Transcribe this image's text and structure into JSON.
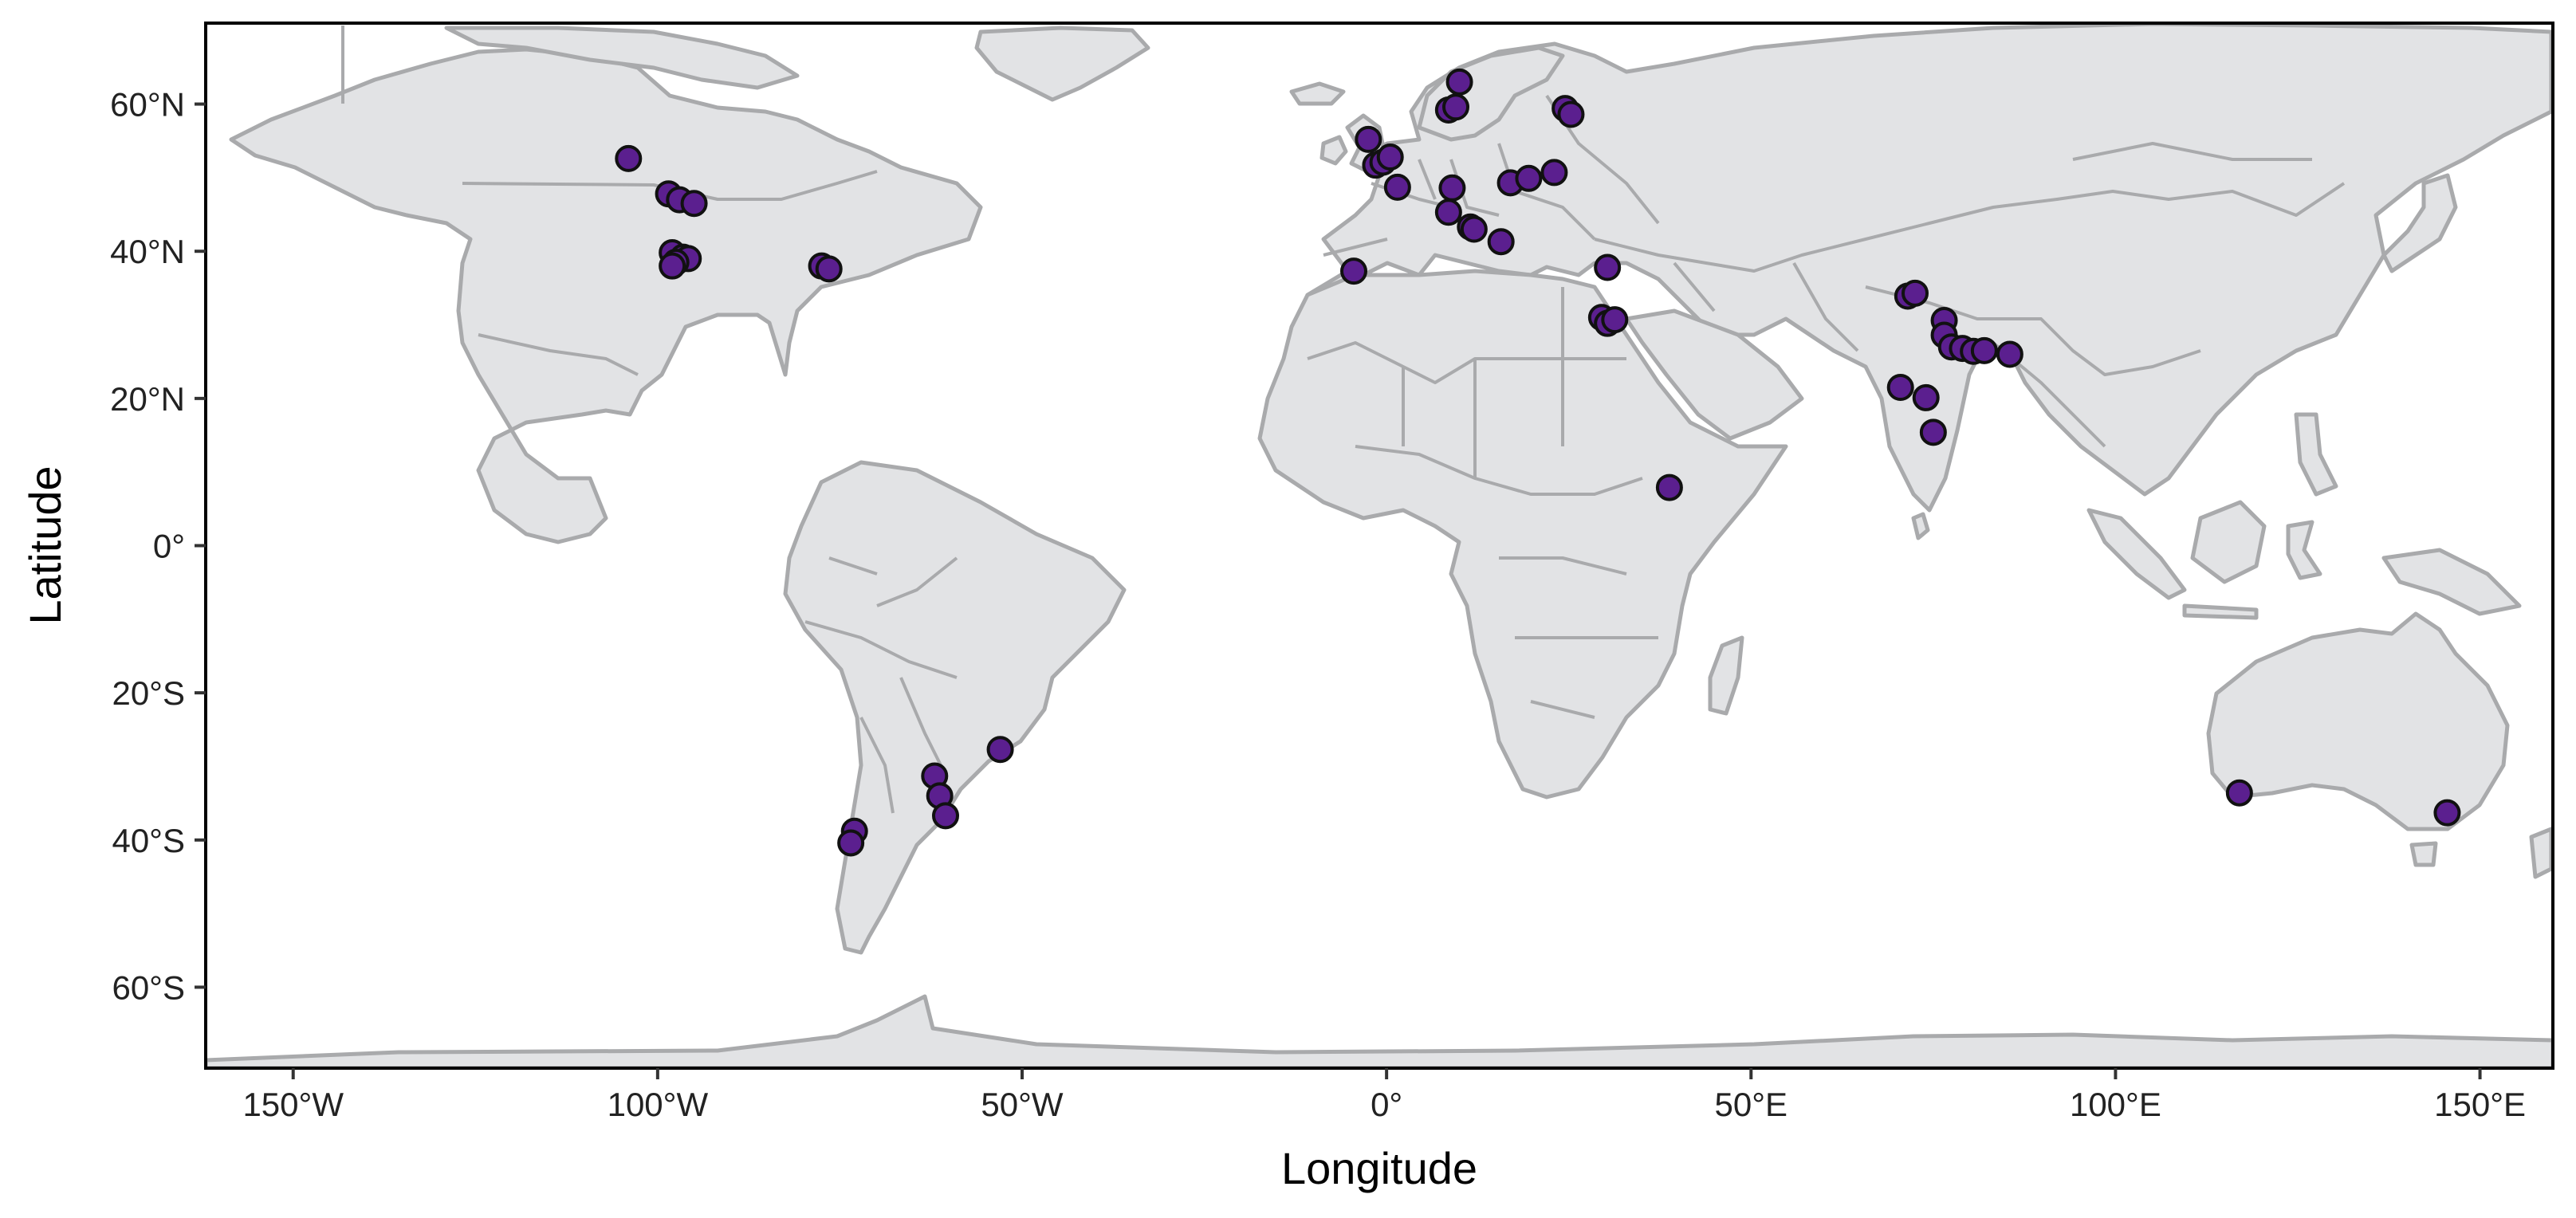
{
  "chart_data": {
    "type": "scatter",
    "basemap": "world",
    "xlabel": "Longitude",
    "ylabel": "Latitude",
    "xlim": [
      -162,
      160
    ],
    "ylim": [
      -71,
      71
    ],
    "x_ticks": [
      {
        "value": -150,
        "label": "150°W"
      },
      {
        "value": -100,
        "label": "100°W"
      },
      {
        "value": -50,
        "label": "50°W"
      },
      {
        "value": 0,
        "label": "0°"
      },
      {
        "value": 50,
        "label": "50°E"
      },
      {
        "value": 100,
        "label": "100°E"
      },
      {
        "value": 150,
        "label": "150°E"
      }
    ],
    "y_ticks": [
      {
        "value": 60,
        "label": "60°N"
      },
      {
        "value": 40,
        "label": "40°N"
      },
      {
        "value": 20,
        "label": "20°N"
      },
      {
        "value": 0,
        "label": "0°"
      },
      {
        "value": -20,
        "label": "20°S"
      },
      {
        "value": -40,
        "label": "40°S"
      },
      {
        "value": -60,
        "label": "60°S"
      }
    ],
    "grid": false,
    "colors": {
      "point_fill": "#5b1f8f",
      "point_edge": "#111111",
      "land": "#e2e3e5",
      "land_edge": "#a9aaac"
    },
    "points": [
      {
        "lon": -104,
        "lat": 52.6
      },
      {
        "lon": -98.5,
        "lat": 47.8
      },
      {
        "lon": -97,
        "lat": 47
      },
      {
        "lon": -95,
        "lat": 46.5
      },
      {
        "lon": -98,
        "lat": 39.8
      },
      {
        "lon": -96.5,
        "lat": 39.2
      },
      {
        "lon": -95.8,
        "lat": 39
      },
      {
        "lon": -97.5,
        "lat": 38.5
      },
      {
        "lon": -98,
        "lat": 38
      },
      {
        "lon": -77.5,
        "lat": 38
      },
      {
        "lon": -76.5,
        "lat": 37.6
      },
      {
        "lon": -62,
        "lat": -31.3
      },
      {
        "lon": -61.3,
        "lat": -34
      },
      {
        "lon": -60.5,
        "lat": -36.7
      },
      {
        "lon": -53,
        "lat": -27.7
      },
      {
        "lon": -73,
        "lat": -38.8
      },
      {
        "lon": -73.5,
        "lat": -40.4
      },
      {
        "lon": -2.5,
        "lat": 55.2
      },
      {
        "lon": -1.5,
        "lat": 51.7
      },
      {
        "lon": -0.5,
        "lat": 52.1
      },
      {
        "lon": 0.5,
        "lat": 52.8
      },
      {
        "lon": 1.5,
        "lat": 48.7
      },
      {
        "lon": 8.5,
        "lat": 59.2
      },
      {
        "lon": 9.5,
        "lat": 59.6
      },
      {
        "lon": 10,
        "lat": 63
      },
      {
        "lon": 24.5,
        "lat": 59.4
      },
      {
        "lon": 25.3,
        "lat": 58.6
      },
      {
        "lon": 8.5,
        "lat": 45.3
      },
      {
        "lon": 9,
        "lat": 48.6
      },
      {
        "lon": 11.5,
        "lat": 43.3
      },
      {
        "lon": 12,
        "lat": 43
      },
      {
        "lon": 15.7,
        "lat": 41.3
      },
      {
        "lon": 17,
        "lat": 49.3
      },
      {
        "lon": 19.5,
        "lat": 49.9
      },
      {
        "lon": 23,
        "lat": 50.7
      },
      {
        "lon": -4.5,
        "lat": 37.3
      },
      {
        "lon": 30.3,
        "lat": 37.8
      },
      {
        "lon": 29.5,
        "lat": 31
      },
      {
        "lon": 30.3,
        "lat": 30.2
      },
      {
        "lon": 31.3,
        "lat": 30.7
      },
      {
        "lon": 38.8,
        "lat": 7.9
      },
      {
        "lon": 71.5,
        "lat": 33.9
      },
      {
        "lon": 72.5,
        "lat": 34.3
      },
      {
        "lon": 76.5,
        "lat": 30.6
      },
      {
        "lon": 76.5,
        "lat": 28.6
      },
      {
        "lon": 77.5,
        "lat": 27
      },
      {
        "lon": 79,
        "lat": 26.8
      },
      {
        "lon": 80.5,
        "lat": 26.4
      },
      {
        "lon": 82,
        "lat": 26.5
      },
      {
        "lon": 85.5,
        "lat": 26
      },
      {
        "lon": 70.5,
        "lat": 21.5
      },
      {
        "lon": 74,
        "lat": 20.1
      },
      {
        "lon": 75,
        "lat": 15.4
      },
      {
        "lon": 117,
        "lat": -33.6
      },
      {
        "lon": 145.5,
        "lat": -36.3
      }
    ]
  }
}
